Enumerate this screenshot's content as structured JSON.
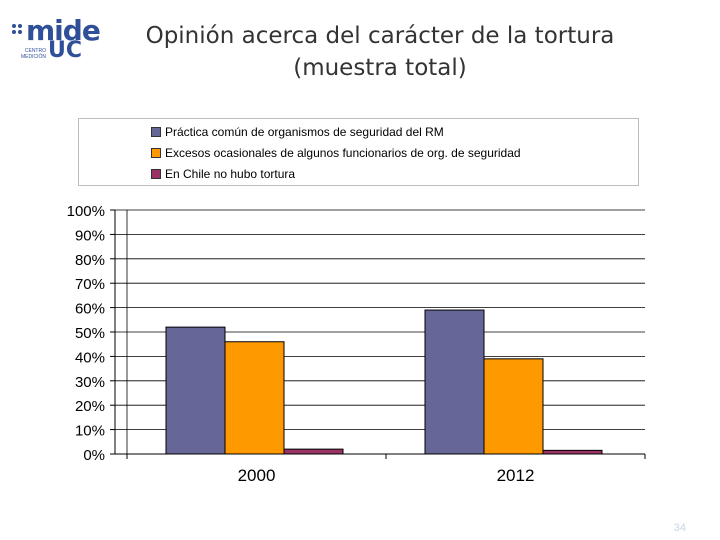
{
  "logo": {
    "main": "mide",
    "uc": "UC",
    "sub": "CENTRO MEDICIÓN"
  },
  "title_lines": [
    "Opinión acerca del carácter de la tortura",
    "(muestra total)"
  ],
  "page_number": "34",
  "colors": {
    "series1": "#666699",
    "series2": "#ff9900",
    "series3": "#993366",
    "grid": "#000000",
    "title": "#333333"
  },
  "chart_data": {
    "type": "bar",
    "categories": [
      "2000",
      "2012"
    ],
    "series": [
      {
        "name": "Práctica común de organismos de seguridad del RM",
        "values": [
          52,
          59
        ],
        "color": "#666699"
      },
      {
        "name": "Excesos ocasionales de algunos funcionarios de org. de seguridad",
        "values": [
          46,
          39
        ],
        "color": "#ff9900"
      },
      {
        "name": "En Chile no hubo tortura",
        "values": [
          2,
          1.5
        ],
        "color": "#993366"
      }
    ],
    "ylim": [
      0,
      100
    ],
    "yticks": [
      "0%",
      "10%",
      "20%",
      "30%",
      "40%",
      "50%",
      "60%",
      "70%",
      "80%",
      "90%",
      "100%"
    ],
    "grid": true,
    "legend_position": "top"
  }
}
